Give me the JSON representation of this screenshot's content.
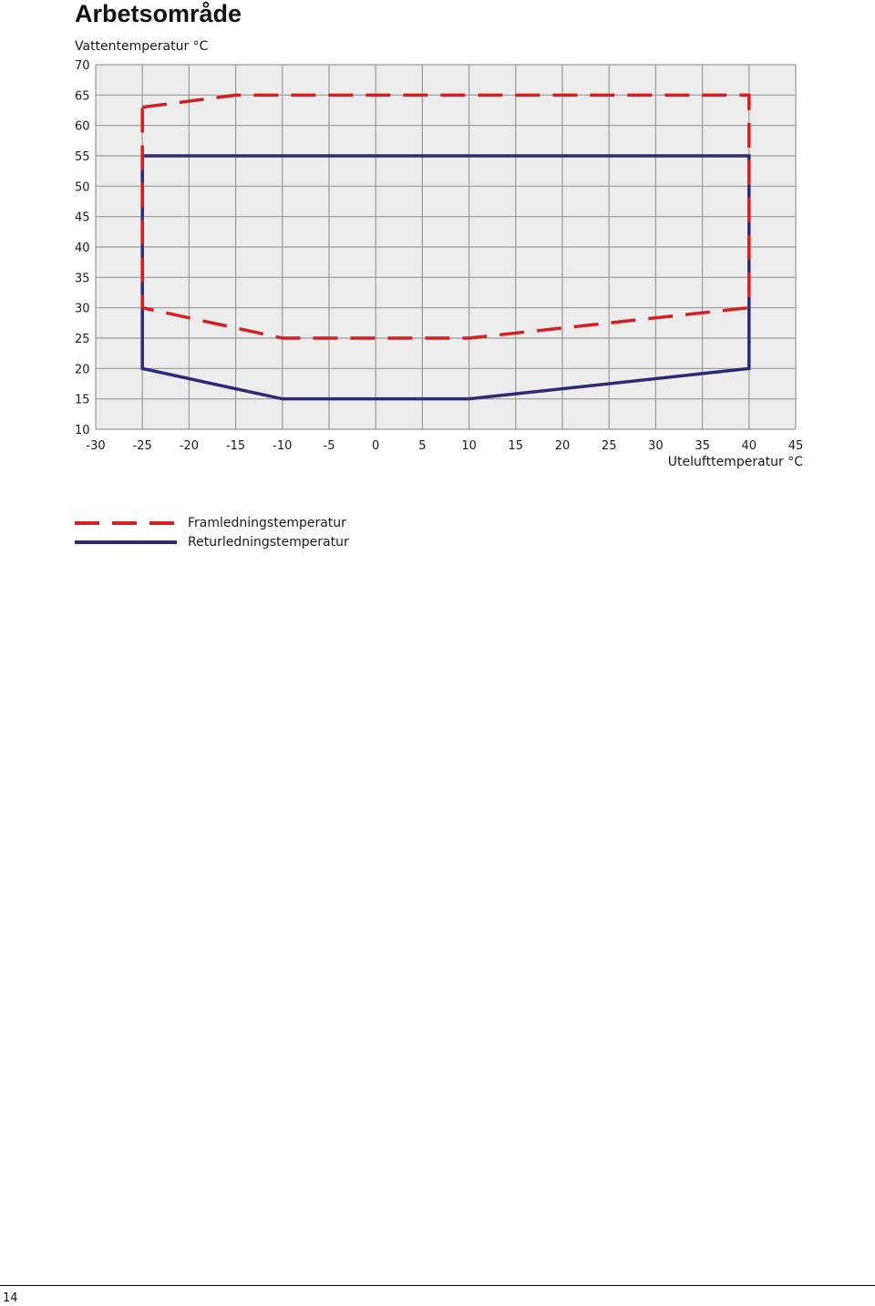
{
  "page": {
    "title": "Arbetsområde",
    "page_number": "14"
  },
  "chart_data": {
    "type": "line",
    "ylabel": "Vattentemperatur °C",
    "xlabel": "Utelufttemperatur °C",
    "xlim": [
      -30,
      45
    ],
    "ylim": [
      10,
      70
    ],
    "xticks": [
      -30,
      -25,
      -20,
      -15,
      -10,
      -5,
      0,
      5,
      10,
      15,
      20,
      25,
      30,
      35,
      40,
      45
    ],
    "yticks": [
      10,
      15,
      20,
      25,
      30,
      35,
      40,
      45,
      50,
      55,
      60,
      65,
      70
    ],
    "grid": true,
    "legend_position": "bottom-left",
    "background_color": "#ededee",
    "grid_color": "#9a9a9a",
    "series": [
      {
        "name": "Framledningstemperatur",
        "style": "dashed",
        "color": "#d42020",
        "closed": true,
        "x": [
          -25,
          -15,
          40,
          40,
          10,
          -10,
          -25
        ],
        "y": [
          63,
          65,
          65,
          30,
          25,
          25,
          30
        ]
      },
      {
        "name": "Returledningstemperatur",
        "style": "solid",
        "color": "#2e2a78",
        "closed": true,
        "x": [
          -25,
          40,
          40,
          10,
          -10,
          -25
        ],
        "y": [
          55,
          55,
          20,
          15,
          15,
          20
        ]
      }
    ]
  }
}
